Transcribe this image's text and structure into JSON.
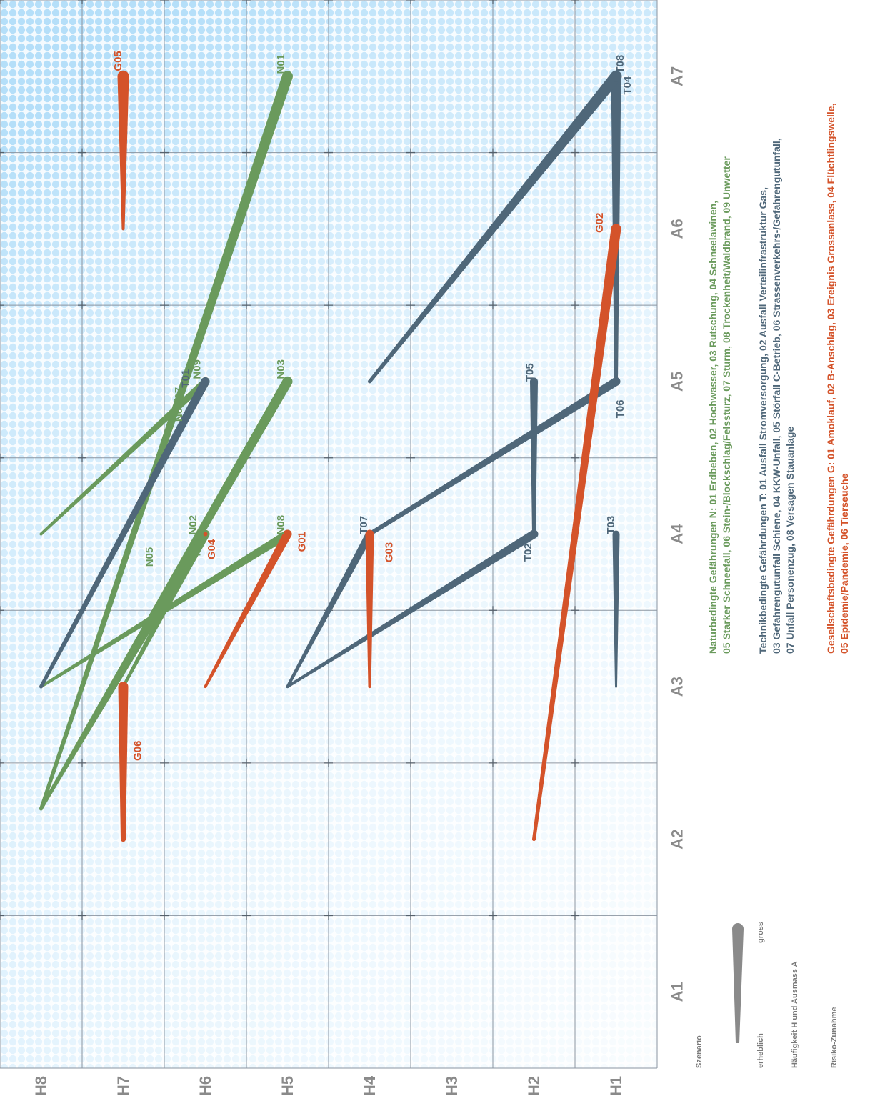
{
  "chart_data": {
    "type": "line",
    "x_axis": {
      "name": "Ausmass A",
      "ticks": [
        "A1",
        "A2",
        "A3",
        "A4",
        "A5",
        "A6",
        "A7"
      ],
      "range": [
        0.5,
        7.5
      ]
    },
    "y_axis": {
      "name": "Häufigkeit H",
      "ticks": [
        "H1",
        "H2",
        "H3",
        "H4",
        "H5",
        "H6",
        "H7",
        "H8"
      ],
      "range": [
        0.5,
        8.5
      ]
    },
    "legend": {
      "title": "Szenario",
      "size_small": "erheblich",
      "size_large": "gross",
      "gradient_label": "Häufigkeit H und Ausmass A",
      "gradient_sub": "Risiko-Zunahme"
    },
    "categories": [
      {
        "key": "N",
        "color": "#6a9a5c",
        "lines": [
          "Naturbedingte Gefährungen N: 01 Erdbeben, 02 Hochwasser, 03 Rutschung, 04 Schneelawinen,",
          "05 Starker Schneefall, 06 Stein-/Blockschlag/Felssturz, 07 Sturm, 08 Trockenheit/Waldbrand, 09 Unwetter"
        ]
      },
      {
        "key": "T",
        "color": "#4f6779",
        "lines": [
          "Technikbedingte Gefährdungen T: 01 Ausfall Stromversorgung, 02 Ausfall Verteilinfrastruktur Gas,",
          "03 Gefahrengutunfall Schiene, 04 KKW-Unfall, 05 Störfall C-Betrieb, 06 Strassenverkehrs-/Gefahrengutunfall,",
          "07 Unfall Personenzug, 08 Versagen Stauanlage"
        ]
      },
      {
        "key": "G",
        "color": "#d4532a",
        "lines": [
          "Gesellschaftsbedingte Gefährdungen G: 01 Amoklauf, 02 B-Anschlag, 03 Ereignis Grossanlass, 04 Flüchtlingswelle,",
          "05 Epidemie/Pandemie, 06 Tierseuche"
        ]
      }
    ],
    "series": [
      {
        "name": "N01",
        "cat": "N",
        "points": [
          [
            2.2,
            8.0
          ],
          [
            7.0,
            5.0
          ]
        ],
        "w_start": 5,
        "w_end": 15
      },
      {
        "name": "N02",
        "cat": "N",
        "points": [
          [
            3.0,
            7.0
          ],
          [
            4.0,
            6.0
          ]
        ],
        "w_start": 4,
        "w_end": 12
      },
      {
        "name": "N03",
        "cat": "N",
        "points": [
          [
            2.2,
            8.0
          ],
          [
            5.0,
            5.0
          ]
        ],
        "w_start": 5,
        "w_end": 14
      },
      {
        "name": "N04/07",
        "cat": "N",
        "points": [
          [
            4.0,
            7.0
          ],
          [
            5.0,
            6.0
          ]
        ],
        "w_start": 4,
        "w_end": 12
      },
      {
        "name": "N05",
        "cat": "N",
        "points": [
          [
            2.2,
            8.0
          ],
          [
            4.0,
            6.0
          ]
        ],
        "w_start": 4,
        "w_end": 10
      },
      {
        "name": "N06",
        "cat": "N",
        "points": [
          [
            3.0,
            7.0
          ],
          [
            4.0,
            6.0
          ]
        ],
        "w_start": 4,
        "w_end": 10
      },
      {
        "name": "N08",
        "cat": "N",
        "points": [
          [
            3.0,
            8.0
          ],
          [
            4.0,
            5.0
          ]
        ],
        "w_start": 4,
        "w_end": 12
      },
      {
        "name": "N09",
        "cat": "N",
        "points": [
          [
            4.0,
            8.0
          ],
          [
            5.0,
            6.0
          ]
        ],
        "w_start": 4,
        "w_end": 10
      },
      {
        "name": "T01",
        "cat": "T",
        "points": [
          [
            3.0,
            8.0
          ],
          [
            5.0,
            6.0
          ]
        ],
        "w_start": 5,
        "w_end": 12
      },
      {
        "name": "T02",
        "cat": "T",
        "points": [
          [
            4.0,
            2.0
          ],
          [
            3.0,
            5.0
          ]
        ],
        "w_start": 12,
        "w_end": 4
      },
      {
        "name": "T03",
        "cat": "T",
        "points": [
          [
            3.0,
            1.0
          ],
          [
            4.0,
            1.0
          ]
        ],
        "w_start": 3,
        "w_end": 10
      },
      {
        "name": "T04",
        "cat": "T",
        "points": [
          [
            5.0,
            1.0
          ],
          [
            7.0,
            1.0
          ]
        ],
        "w_start": 5,
        "w_end": 14
      },
      {
        "name": "T05",
        "cat": "T",
        "points": [
          [
            4.0,
            2.0
          ],
          [
            5.0,
            2.0
          ]
        ],
        "w_start": 5,
        "w_end": 11
      },
      {
        "name": "T06",
        "cat": "T",
        "points": [
          [
            4.0,
            4.0
          ],
          [
            5.0,
            1.0
          ]
        ],
        "w_start": 6,
        "w_end": 12
      },
      {
        "name": "T07",
        "cat": "T",
        "points": [
          [
            3.0,
            5.0
          ],
          [
            4.0,
            4.0
          ]
        ],
        "w_start": 4,
        "w_end": 11
      },
      {
        "name": "T08",
        "cat": "T",
        "points": [
          [
            5.0,
            4.0
          ],
          [
            7.0,
            1.0
          ]
        ],
        "w_start": 5,
        "w_end": 16
      },
      {
        "name": "G01",
        "cat": "G",
        "points": [
          [
            3.0,
            6.0
          ],
          [
            4.0,
            5.0
          ]
        ],
        "w_start": 4,
        "w_end": 12
      },
      {
        "name": "G02",
        "cat": "G",
        "points": [
          [
            2.0,
            2.0
          ],
          [
            6.0,
            1.0
          ]
        ],
        "w_start": 5,
        "w_end": 14
      },
      {
        "name": "G03",
        "cat": "G",
        "points": [
          [
            3.0,
            4.0
          ],
          [
            4.0,
            4.0
          ]
        ],
        "w_start": 4,
        "w_end": 12
      },
      {
        "name": "G04",
        "cat": "G",
        "points": [
          [
            4.0,
            6.0
          ],
          [
            4.0,
            6.0
          ]
        ],
        "w_start": 6,
        "w_end": 6
      },
      {
        "name": "G05",
        "cat": "G",
        "points": [
          [
            6.0,
            7.0
          ],
          [
            7.0,
            7.0
          ]
        ],
        "w_start": 4,
        "w_end": 16
      },
      {
        "name": "G06",
        "cat": "G",
        "points": [
          [
            2.0,
            7.0
          ],
          [
            3.0,
            7.0
          ]
        ],
        "w_start": 7,
        "w_end": 14
      }
    ],
    "labels": [
      {
        "text": "N01",
        "cat": "N",
        "at": [
          7.08,
          5.08
        ]
      },
      {
        "text": "N02",
        "cat": "N",
        "at": [
          4.06,
          6.15
        ]
      },
      {
        "text": "N03",
        "cat": "N",
        "at": [
          5.08,
          5.08
        ]
      },
      {
        "text": "N04/07",
        "cat": "N",
        "at": [
          4.85,
          6.32
        ]
      },
      {
        "text": "N05",
        "cat": "N",
        "at": [
          3.85,
          6.68
        ]
      },
      {
        "text": "N06",
        "cat": "N",
        "at": [
          3.92,
          6.1
        ]
      },
      {
        "text": "N08",
        "cat": "N",
        "at": [
          4.06,
          5.08
        ]
      },
      {
        "text": "N09",
        "cat": "N",
        "at": [
          5.08,
          6.1
        ]
      },
      {
        "text": "T01",
        "cat": "T",
        "at": [
          5.02,
          6.24
        ]
      },
      {
        "text": "T02",
        "cat": "T",
        "at": [
          3.88,
          2.07
        ]
      },
      {
        "text": "T03",
        "cat": "T",
        "at": [
          4.06,
          1.06
        ]
      },
      {
        "text": "T04",
        "cat": "T",
        "at": [
          6.94,
          0.86
        ]
      },
      {
        "text": "T05",
        "cat": "T",
        "at": [
          5.06,
          2.05
        ]
      },
      {
        "text": "T06",
        "cat": "T",
        "at": [
          4.82,
          0.95
        ]
      },
      {
        "text": "T07",
        "cat": "T",
        "at": [
          4.06,
          4.07
        ]
      },
      {
        "text": "T08",
        "cat": "T",
        "at": [
          7.08,
          0.95
        ]
      },
      {
        "text": "G01",
        "cat": "G",
        "at": [
          3.95,
          4.82
        ]
      },
      {
        "text": "G02",
        "cat": "G",
        "at": [
          6.04,
          1.2
        ]
      },
      {
        "text": "G03",
        "cat": "G",
        "at": [
          3.88,
          3.76
        ]
      },
      {
        "text": "G04",
        "cat": "G",
        "at": [
          3.9,
          5.92
        ]
      },
      {
        "text": "G05",
        "cat": "G",
        "at": [
          7.1,
          7.06
        ]
      },
      {
        "text": "G06",
        "cat": "G",
        "at": [
          2.58,
          6.82
        ]
      }
    ]
  }
}
